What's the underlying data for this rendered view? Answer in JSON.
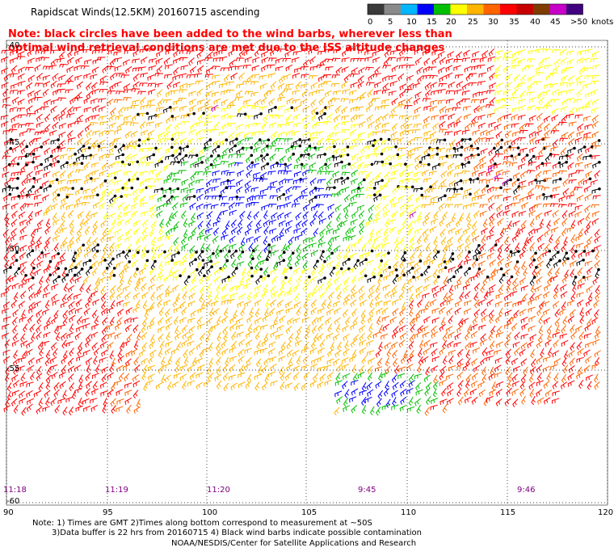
{
  "title": "Rapidscat Winds(12.5KM) 20160715 ascending",
  "note": "Note: black circles have been added to the wind barbs, wherever less than optimal wind retrieval conditions are met due to the ISS altitude changes",
  "speed_scale": {
    "ticks": [
      "0",
      "5",
      "10",
      "15",
      "20",
      "25",
      "30",
      "35",
      "40",
      "45",
      ">50"
    ],
    "unit": "knots",
    "colors": [
      "#3a3a3a",
      "#8a8a8a",
      "#00b7ff",
      "#0000ff",
      "#00bf00",
      "#ffff00",
      "#ffb400",
      "#ff6400",
      "#ff0000",
      "#c80000",
      "#803c00",
      "#c800c8",
      "#400080"
    ]
  },
  "latitude_labels": [
    "-40",
    "-45",
    "-50",
    "-55",
    "-60"
  ],
  "longitude_labels": [
    "90",
    "95",
    "100",
    "105",
    "110",
    "115",
    "120"
  ],
  "pass_times": [
    "11:18",
    "11:19",
    "11:20",
    "9:45",
    "9:46"
  ],
  "footnotes": {
    "line1": "Note: 1) Times are GMT 2)Times along bottom correspond to measurement at ~50S",
    "line2": "3)Data buffer is 22 hrs from 20160715 4) Black wind barbs indicate possible contamination",
    "line3": "NOAA/NESDIS/Center for Satellite Applications and Research"
  }
}
